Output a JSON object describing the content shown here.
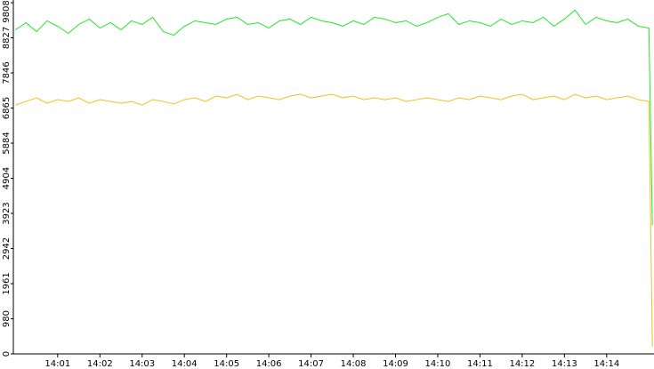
{
  "chart_data": {
    "type": "line",
    "x": [
      "14:00:00",
      "14:00:15",
      "14:00:30",
      "14:00:45",
      "14:01:00",
      "14:01:15",
      "14:01:30",
      "14:01:45",
      "14:02:00",
      "14:02:15",
      "14:02:30",
      "14:02:45",
      "14:03:00",
      "14:03:15",
      "14:03:30",
      "14:03:45",
      "14:04:00",
      "14:04:15",
      "14:04:30",
      "14:04:45",
      "14:05:00",
      "14:05:15",
      "14:05:30",
      "14:05:45",
      "14:06:00",
      "14:06:15",
      "14:06:30",
      "14:06:45",
      "14:07:00",
      "14:07:15",
      "14:07:30",
      "14:07:45",
      "14:08:00",
      "14:08:15",
      "14:08:30",
      "14:08:45",
      "14:09:00",
      "14:09:15",
      "14:09:30",
      "14:09:45",
      "14:10:00",
      "14:10:15",
      "14:10:30",
      "14:10:45",
      "14:11:00",
      "14:11:15",
      "14:11:30",
      "14:11:45",
      "14:12:00",
      "14:12:15",
      "14:12:30",
      "14:12:45",
      "14:13:00",
      "14:13:15",
      "14:13:30",
      "14:13:45",
      "14:14:00",
      "14:14:15",
      "14:14:30",
      "14:14:45",
      "14:15:00",
      "14:15:05"
    ],
    "series": [
      {
        "color": "#22e622",
        "values": [
          9050,
          9250,
          9000,
          9300,
          9150,
          8950,
          9200,
          9350,
          9100,
          9250,
          9050,
          9300,
          9200,
          9400,
          9000,
          8900,
          9150,
          9300,
          9250,
          9200,
          9350,
          9400,
          9200,
          9250,
          9100,
          9300,
          9350,
          9200,
          9400,
          9300,
          9250,
          9150,
          9300,
          9200,
          9400,
          9350,
          9250,
          9300,
          9150,
          9250,
          9400,
          9500,
          9200,
          9300,
          9250,
          9150,
          9350,
          9200,
          9300,
          9250,
          9400,
          9150,
          9350,
          9600,
          9200,
          9400,
          9300,
          9250,
          9350,
          9150,
          9100,
          3600
        ]
      },
      {
        "color": "#f0c020",
        "values": [
          6950,
          7050,
          7150,
          7000,
          7100,
          7050,
          7150,
          7000,
          7100,
          7050,
          7000,
          7050,
          6950,
          7100,
          7050,
          6980,
          7100,
          7150,
          7050,
          7200,
          7150,
          7250,
          7100,
          7200,
          7150,
          7100,
          7200,
          7250,
          7150,
          7200,
          7250,
          7150,
          7200,
          7100,
          7150,
          7100,
          7150,
          7050,
          7100,
          7150,
          7100,
          7050,
          7150,
          7100,
          7200,
          7150,
          7100,
          7200,
          7250,
          7100,
          7150,
          7200,
          7100,
          7250,
          7150,
          7200,
          7100,
          7150,
          7200,
          7100,
          7050,
          200
        ]
      }
    ],
    "xlim": [
      "13:59:57",
      "14:15:06"
    ],
    "xticks": [
      {
        "value": "14:01:00",
        "label": "14:01"
      },
      {
        "value": "14:02:00",
        "label": "14:02"
      },
      {
        "value": "14:03:00",
        "label": "14:03"
      },
      {
        "value": "14:04:00",
        "label": "14:04"
      },
      {
        "value": "14:05:00",
        "label": "14:05"
      },
      {
        "value": "14:06:00",
        "label": "14:06"
      },
      {
        "value": "14:07:00",
        "label": "14:07"
      },
      {
        "value": "14:08:00",
        "label": "14:08"
      },
      {
        "value": "14:09:00",
        "label": "14:09"
      },
      {
        "value": "14:10:00",
        "label": "14:10"
      },
      {
        "value": "14:11:00",
        "label": "14:11"
      },
      {
        "value": "14:12:00",
        "label": "14:12"
      },
      {
        "value": "14:13:00",
        "label": "14:13"
      },
      {
        "value": "14:14:00",
        "label": "14:14"
      }
    ],
    "ylim": [
      0,
      9808
    ],
    "yticks": [
      0,
      980,
      1961,
      2942,
      3923,
      4904,
      5884,
      6865,
      7846,
      8827,
      9808
    ],
    "grid": false
  }
}
